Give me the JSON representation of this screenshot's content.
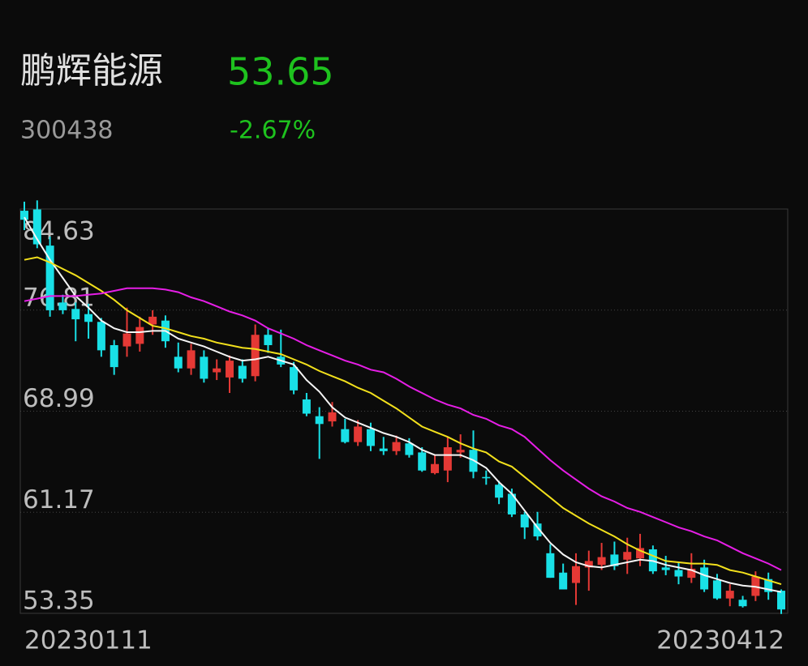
{
  "header": {
    "name": "鹏辉能源",
    "price": "53.65",
    "code": "300438",
    "change": "-2.67%"
  },
  "chart_data": {
    "type": "candlestick",
    "categories": [
      "20230111",
      null,
      null,
      null,
      null,
      null,
      null,
      null,
      null,
      null,
      null,
      null,
      null,
      null,
      null,
      null,
      null,
      null,
      null,
      null,
      null,
      null,
      null,
      null,
      null,
      null,
      null,
      null,
      null,
      null,
      null,
      null,
      null,
      null,
      null,
      null,
      null,
      null,
      null,
      null,
      null,
      null,
      null,
      null,
      null,
      null,
      null,
      null,
      null,
      null,
      null,
      null,
      null,
      null,
      null,
      null,
      null,
      null,
      null,
      "20230412"
    ],
    "open": [
      84.5,
      84.6,
      81.8,
      77.4,
      76.9,
      76.5,
      75.9,
      74.1,
      74.0,
      74.2,
      75.7,
      76.0,
      73.2,
      72.3,
      73.2,
      72.0,
      71.6,
      72.5,
      71.7,
      74.9,
      73.2,
      72.4,
      69.9,
      68.6,
      68.2,
      67.6,
      66.6,
      67.6,
      66.1,
      65.9,
      66.5,
      65.8,
      64.2,
      64.4,
      65.8,
      66.0,
      63.9,
      63.3,
      62.6,
      61.0,
      60.3,
      58.0,
      56.5,
      55.7,
      56.9,
      57.1,
      57.9,
      57.5,
      57.6,
      58.3,
      56.9,
      56.7,
      56.1,
      56.9,
      55.9,
      54.5,
      54.4,
      54.7,
      56.0,
      55.1
    ],
    "high": [
      85.2,
      85.3,
      82.5,
      78.0,
      77.4,
      77.3,
      76.2,
      74.5,
      77.0,
      76.3,
      76.8,
      76.4,
      74.3,
      74.2,
      73.7,
      73.0,
      73.3,
      73.0,
      75.7,
      75.4,
      75.3,
      72.8,
      70.4,
      69.3,
      69.7,
      68.4,
      68.3,
      68.1,
      67.0,
      67.1,
      66.9,
      66.2,
      65.6,
      67.0,
      67.2,
      67.5,
      64.4,
      63.6,
      63.0,
      61.2,
      61.2,
      58.7,
      57.2,
      58.0,
      58.2,
      58.8,
      58.9,
      59.2,
      59.5,
      58.6,
      57.8,
      57.3,
      58.0,
      57.5,
      56.4,
      55.6,
      54.7,
      56.6,
      56.5,
      55.2
    ],
    "low": [
      83.0,
      81.6,
      76.3,
      76.5,
      74.4,
      74.6,
      73.2,
      71.8,
      73.2,
      73.6,
      74.9,
      73.9,
      72.0,
      71.8,
      71.2,
      71.4,
      70.4,
      71.2,
      71.3,
      73.5,
      72.4,
      70.3,
      68.6,
      65.3,
      67.8,
      66.5,
      66.3,
      65.9,
      65.6,
      65.6,
      65.4,
      64.3,
      64.1,
      63.5,
      65.4,
      63.8,
      63.3,
      61.8,
      60.8,
      59.1,
      59.0,
      56.1,
      55.2,
      54.0,
      55.1,
      56.7,
      56.7,
      56.4,
      57.0,
      56.4,
      56.3,
      55.6,
      55.7,
      55.0,
      54.4,
      53.9,
      53.8,
      54.3,
      54.4,
      53.3
    ],
    "close": [
      83.8,
      81.9,
      76.8,
      76.8,
      76.1,
      75.9,
      73.7,
      72.4,
      75.0,
      75.5,
      76.3,
      74.4,
      72.3,
      73.7,
      71.5,
      72.3,
      72.9,
      71.5,
      74.9,
      74.1,
      72.6,
      70.6,
      68.8,
      68.0,
      68.9,
      66.6,
      67.8,
      66.3,
      65.9,
      66.6,
      65.6,
      64.4,
      64.9,
      66.2,
      66.0,
      64.3,
      63.8,
      62.3,
      61.0,
      60.0,
      59.3,
      56.1,
      55.2,
      57.0,
      57.4,
      57.7,
      57.0,
      58.1,
      58.4,
      56.6,
      56.7,
      56.2,
      56.8,
      55.2,
      54.5,
      55.1,
      53.9,
      56.2,
      55.0,
      53.65
    ],
    "up_color": "#e53935",
    "down_color": "#19e0e6",
    "lines": [
      {
        "color": "#f5f5f5",
        "values": [
          84.0,
          82.3,
          80.7,
          79.3,
          77.9,
          77.0,
          76.0,
          75.4,
          75.1,
          75.1,
          75.2,
          75.2,
          74.6,
          74.3,
          74.0,
          73.6,
          73.2,
          72.9,
          73.0,
          73.2,
          72.9,
          72.6,
          71.4,
          70.5,
          69.3,
          68.5,
          68.1,
          67.7,
          67.3,
          67.0,
          66.6,
          66.0,
          65.6,
          65.6,
          65.6,
          65.2,
          64.6,
          63.5,
          62.6,
          61.3,
          60.0,
          58.8,
          57.9,
          57.3,
          57.0,
          56.9,
          57.1,
          57.3,
          57.5,
          57.4,
          57.1,
          56.9,
          56.7,
          56.3,
          56.0,
          55.7,
          55.5,
          55.4,
          55.2,
          55.0
        ]
      },
      {
        "color": "#f2e01c",
        "values": [
          80.7,
          80.9,
          80.5,
          80.0,
          79.5,
          78.9,
          78.3,
          77.6,
          76.8,
          76.2,
          75.6,
          75.4,
          75.1,
          74.8,
          74.6,
          74.3,
          74.1,
          73.9,
          73.8,
          73.6,
          73.4,
          73.0,
          72.6,
          72.1,
          71.7,
          71.3,
          70.8,
          70.4,
          69.8,
          69.2,
          68.5,
          67.8,
          67.4,
          67.0,
          66.5,
          66.1,
          65.8,
          65.1,
          64.7,
          63.9,
          63.1,
          62.3,
          61.5,
          60.9,
          60.3,
          59.8,
          59.3,
          58.7,
          58.2,
          57.8,
          57.4,
          57.3,
          57.2,
          57.2,
          57.1,
          56.7,
          56.5,
          56.2,
          55.9,
          55.6
        ]
      },
      {
        "color": "#e61ee6",
        "values": [
          77.5,
          77.7,
          77.9,
          77.9,
          77.9,
          78.0,
          78.1,
          78.3,
          78.5,
          78.5,
          78.5,
          78.4,
          78.2,
          77.8,
          77.5,
          77.1,
          76.7,
          76.4,
          76.0,
          75.4,
          75.0,
          74.6,
          74.1,
          73.7,
          73.3,
          72.9,
          72.6,
          72.2,
          72.0,
          71.5,
          70.9,
          70.4,
          69.9,
          69.5,
          69.2,
          68.7,
          68.4,
          67.9,
          67.6,
          67.0,
          66.1,
          65.2,
          64.4,
          63.7,
          63.0,
          62.4,
          62.0,
          61.5,
          61.2,
          60.8,
          60.4,
          60.0,
          59.7,
          59.3,
          59.0,
          58.5,
          58.0,
          57.6,
          57.2,
          56.7
        ]
      }
    ],
    "ylim": [
      53.35,
      84.63
    ],
    "yticks": [
      53.35,
      61.17,
      68.99,
      76.81,
      84.63
    ],
    "grid": true
  }
}
